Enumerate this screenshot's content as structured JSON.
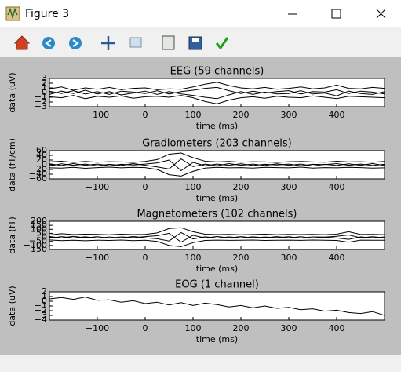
{
  "window": {
    "title": "Figure 3"
  },
  "chart_data": [
    {
      "type": "line",
      "title": "EEG (59 channels)",
      "xlabel": "time (ms)",
      "ylabel": "data (uV)",
      "x": [
        -200,
        -175,
        -150,
        -125,
        -100,
        -75,
        -50,
        -25,
        0,
        25,
        50,
        75,
        100,
        125,
        150,
        175,
        200,
        225,
        250,
        275,
        300,
        325,
        350,
        375,
        400,
        425,
        450,
        475,
        500
      ],
      "xlim": [
        -200,
        500
      ],
      "xticks": [
        {
          "value": -100,
          "label": "−100"
        },
        0,
        100,
        200,
        300,
        400
      ],
      "ylim": [
        -3,
        3
      ],
      "yticks": [
        {
          "value": -3,
          "label": "−3"
        },
        {
          "value": -2,
          "label": "−2"
        },
        {
          "value": -1,
          "label": "−1"
        },
        0,
        1,
        2,
        3
      ],
      "series": [
        {
          "color": "#000000",
          "values": [
            0.8,
            1.2,
            0.5,
            1.0,
            0.7,
            1.1,
            0.6,
            0.9,
            1.0,
            0.6,
            0.8,
            0.7,
            1.2,
            1.8,
            2.2,
            1.5,
            1.0,
            0.8,
            1.1,
            0.7,
            0.9,
            1.2,
            0.8,
            1.0,
            1.6,
            0.9,
            0.8,
            1.1,
            0.9
          ]
        },
        {
          "color": "#000000",
          "values": [
            -0.9,
            -1.1,
            -0.6,
            -1.3,
            -0.8,
            -1.0,
            -0.7,
            -1.2,
            -0.9,
            -0.8,
            -1.0,
            -0.6,
            -1.1,
            -1.9,
            -2.4,
            -1.6,
            -1.1,
            -0.9,
            -1.2,
            -0.8,
            -1.0,
            -1.1,
            -0.7,
            -1.0,
            -1.3,
            -0.8,
            -0.9,
            -1.0,
            -1.1
          ]
        },
        {
          "color": "#000000",
          "values": [
            0.3,
            -0.2,
            0.4,
            -0.3,
            0.2,
            -0.4,
            0.3,
            0.1,
            -0.2,
            0.4,
            -0.3,
            0.2,
            0.5,
            0.9,
            1.1,
            0.4,
            -0.2,
            0.3,
            -0.1,
            0.2,
            0.4,
            -0.3,
            0.2,
            0.1,
            0.6,
            -0.2,
            0.3,
            0.1,
            -0.3
          ]
        },
        {
          "color": "#000000",
          "values": [
            -0.4,
            0.3,
            -0.2,
            0.5,
            -0.3,
            0.2,
            -0.5,
            -0.1,
            0.3,
            -0.4,
            0.2,
            -0.3,
            -0.6,
            -1.0,
            -1.3,
            -0.5,
            0.2,
            -0.4,
            0.1,
            -0.3,
            -0.2,
            0.4,
            -0.3,
            -0.1,
            -0.7,
            0.3,
            -0.2,
            -0.4,
            0.2
          ]
        }
      ]
    },
    {
      "type": "line",
      "title": "Gradiometers (203 channels)",
      "xlabel": "time (ms)",
      "ylabel": "data (fT/cm)",
      "x": [
        -200,
        -175,
        -150,
        -125,
        -100,
        -75,
        -50,
        -25,
        0,
        25,
        50,
        75,
        100,
        125,
        150,
        175,
        200,
        225,
        250,
        275,
        300,
        325,
        350,
        375,
        400,
        425,
        450,
        475,
        500
      ],
      "xlim": [
        -200,
        500
      ],
      "xticks": [
        {
          "value": -100,
          "label": "−100"
        },
        0,
        100,
        200,
        300,
        400
      ],
      "ylim": [
        -60,
        60
      ],
      "yticks": [
        {
          "value": -60,
          "label": "−60"
        },
        {
          "value": -40,
          "label": "−40"
        },
        {
          "value": -20,
          "label": "−20"
        },
        0,
        20,
        40,
        60
      ],
      "series": [
        {
          "color": "#000000",
          "values": [
            12,
            15,
            10,
            14,
            11,
            13,
            12,
            10,
            14,
            22,
            45,
            50,
            30,
            15,
            12,
            14,
            11,
            13,
            12,
            10,
            13,
            14,
            12,
            11,
            15,
            12,
            13,
            11,
            14
          ]
        },
        {
          "color": "#000000",
          "values": [
            -13,
            -14,
            -11,
            -15,
            -12,
            -10,
            -13,
            -11,
            -12,
            -20,
            -42,
            -48,
            -28,
            -14,
            -11,
            -13,
            -12,
            -14,
            -11,
            -12,
            -13,
            -10,
            -14,
            -12,
            -13,
            -11,
            -12,
            -14,
            -13
          ]
        },
        {
          "color": "#000000",
          "values": [
            4,
            -3,
            5,
            -2,
            3,
            -4,
            2,
            -1,
            3,
            8,
            20,
            -25,
            10,
            -4,
            3,
            -2,
            4,
            -3,
            2,
            -1,
            3,
            -4,
            2,
            1,
            5,
            -2,
            3,
            -3,
            2
          ]
        },
        {
          "color": "#000000",
          "values": [
            -5,
            4,
            -2,
            3,
            -4,
            2,
            -3,
            5,
            -2,
            -9,
            -18,
            25,
            -8,
            3,
            -4,
            5,
            -2,
            3,
            -3,
            4,
            -2,
            3,
            -5,
            2,
            -3,
            4,
            -2,
            5,
            -3
          ]
        }
      ]
    },
    {
      "type": "line",
      "title": "Magnetometers (102 channels)",
      "xlabel": "time (ms)",
      "ylabel": "data (fT)",
      "x": [
        -200,
        -175,
        -150,
        -125,
        -100,
        -75,
        -50,
        -25,
        0,
        25,
        50,
        75,
        100,
        125,
        150,
        175,
        200,
        225,
        250,
        275,
        300,
        325,
        350,
        375,
        400,
        425,
        450,
        475,
        500
      ],
      "xlim": [
        -200,
        500
      ],
      "xticks": [
        {
          "value": -100,
          "label": "−100"
        },
        0,
        100,
        200,
        300,
        400
      ],
      "ylim": [
        -150,
        200
      ],
      "yticks": [
        {
          "value": -150,
          "label": "−150"
        },
        {
          "value": -100,
          "label": "−100"
        },
        {
          "value": -50,
          "label": "−50"
        },
        0,
        50,
        100,
        150,
        200
      ],
      "series": [
        {
          "color": "#000000",
          "values": [
            30,
            45,
            35,
            40,
            38,
            32,
            40,
            35,
            38,
            55,
            110,
            120,
            70,
            40,
            35,
            38,
            33,
            36,
            40,
            34,
            37,
            35,
            38,
            34,
            40,
            70,
            36,
            38,
            34
          ]
        },
        {
          "color": "#000000",
          "values": [
            -32,
            -40,
            -36,
            -42,
            -35,
            -38,
            -33,
            -40,
            -36,
            -50,
            -100,
            -115,
            -65,
            -38,
            -34,
            -37,
            -35,
            -33,
            -38,
            -36,
            -34,
            -37,
            -33,
            -35,
            -38,
            -60,
            -34,
            -36,
            -35
          ]
        },
        {
          "color": "#000000",
          "values": [
            10,
            -8,
            12,
            -5,
            8,
            -10,
            6,
            -4,
            9,
            20,
            50,
            -60,
            25,
            -8,
            10,
            -6,
            9,
            -7,
            5,
            -4,
            8,
            -9,
            6,
            3,
            12,
            30,
            -5,
            8,
            -6
          ]
        },
        {
          "color": "#000000",
          "values": [
            -12,
            9,
            -6,
            7,
            -9,
            5,
            -8,
            10,
            -5,
            -18,
            -45,
            60,
            -20,
            7,
            -9,
            6,
            -8,
            7,
            -5,
            9,
            -6,
            8,
            -10,
            4,
            -8,
            -25,
            6,
            -7,
            5
          ]
        }
      ]
    },
    {
      "type": "line",
      "title": "EOG (1 channel)",
      "xlabel": "time (ms)",
      "ylabel": "data (uV)",
      "x": [
        -200,
        -175,
        -150,
        -125,
        -100,
        -75,
        -50,
        -25,
        0,
        25,
        50,
        75,
        100,
        125,
        150,
        175,
        200,
        225,
        250,
        275,
        300,
        325,
        350,
        375,
        400,
        425,
        450,
        475,
        500
      ],
      "xlim": [
        -200,
        500
      ],
      "xticks": [
        {
          "value": -100,
          "label": "−100"
        },
        0,
        100,
        200,
        300,
        400
      ],
      "ylim": [
        -4,
        2
      ],
      "yticks": [
        {
          "value": -4,
          "label": "−4"
        },
        {
          "value": -3,
          "label": "−3"
        },
        {
          "value": -2,
          "label": "−2"
        },
        {
          "value": -1,
          "label": "−1"
        },
        0,
        1,
        2
      ],
      "series": [
        {
          "color": "#000000",
          "values": [
            0.5,
            0.8,
            0.4,
            0.9,
            0.2,
            0.3,
            -0.2,
            0.1,
            -0.5,
            -0.2,
            -0.8,
            -0.3,
            -0.9,
            -0.4,
            -0.7,
            -1.2,
            -0.9,
            -1.4,
            -1.0,
            -1.5,
            -1.3,
            -1.8,
            -1.6,
            -2.1,
            -1.9,
            -2.4,
            -2.6,
            -2.2,
            -3.0
          ]
        }
      ]
    }
  ]
}
